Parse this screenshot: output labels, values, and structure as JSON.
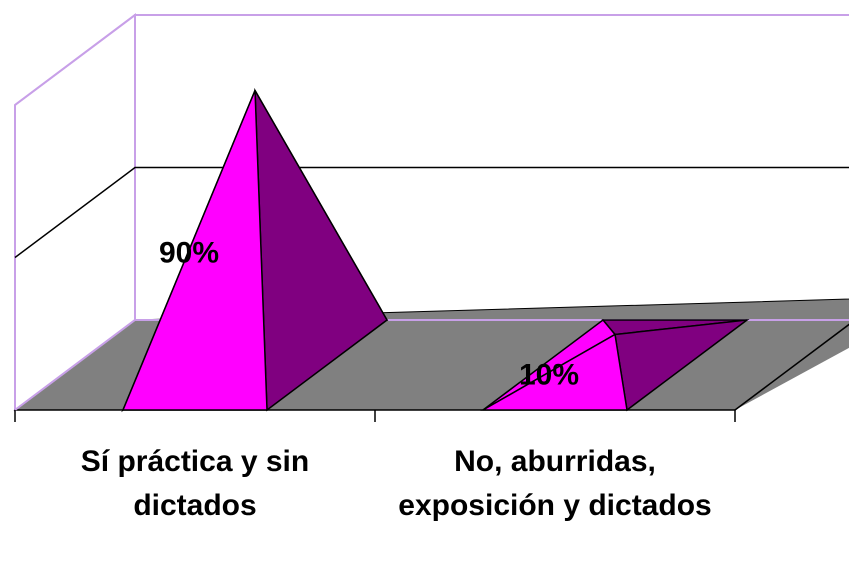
{
  "chart_data": {
    "type": "pyramid3d",
    "categories": [
      "Sí práctica y sin dictados",
      "No, aburridas, exposición y dictados"
    ],
    "values": [
      90,
      10
    ],
    "value_labels": [
      "90%",
      "10%"
    ],
    "front_color": "#ff00ff",
    "side_color": "#800080",
    "floor_color": "#808080",
    "ylim": [
      0,
      100
    ],
    "yticks": [
      0,
      50,
      100
    ],
    "grid": true
  }
}
